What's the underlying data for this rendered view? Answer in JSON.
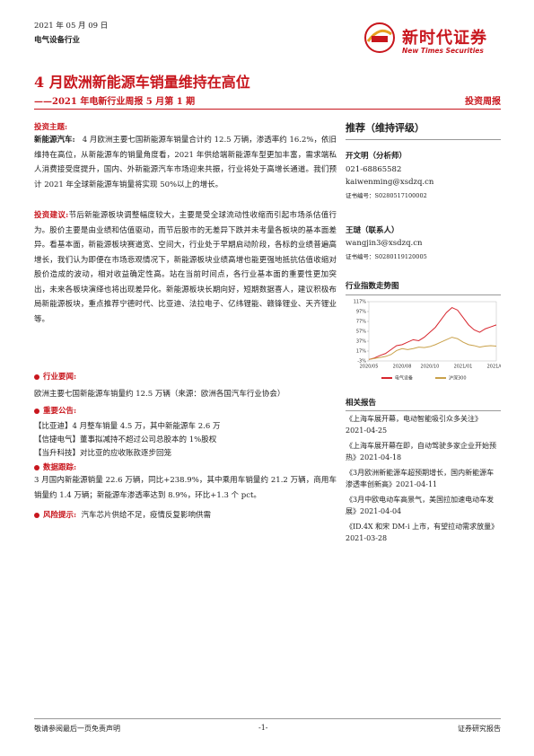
{
  "header": {
    "date": "2021 年 05 月 09 日",
    "industry": "电气设备行业",
    "company_cn": "新时代证券",
    "company_en": "New Times Securities"
  },
  "title": "4 月欧洲新能源车销量维持在高位",
  "subtitle": "——2021 年电新行业周报 5 月第 1 期",
  "report_type": "投资周报",
  "main": {
    "theme": {
      "heading": "投资主题:",
      "lead": "新能源汽车:",
      "text": "4 月欧洲主要七国新能源车销量合计约 12.5 万辆，渗透率约 16.2%，依旧维持在高位，从新能源车的销量角度看，2021 年供给端新能源车型更加丰富，需求端私人消费接受度提升，国内、外新能源汽车市场迎来共振，行业将处于高增长通道。我们预计 2021 年全球新能源车销量将实现 50%以上的增长。"
    },
    "advice": {
      "heading": "投资建议:",
      "text": "节后新能源板块调整幅度较大，主要是受全球流动性收缩而引起市场杀估值行为。股价主要是由业绩和估值驱动，而节后股市的无差异下跌并未考量各板块的基本面差异。看基本面，新能源板块赛道宽、空间大，行业处于早期启动阶段，各标的业绩普遍高增长，我们认为即便在市场悲观情况下，新能源板块业绩高增也能更强地抵抗估值收缩对股价造成的波动，相对收益确定性高。站在当前时间点，各行业基本面的重要性更加突出，未来各板块演绎也将出现差异化。新能源板块长期向好，短期数据喜人，建议积极布局新能源板块，重点推荐宁德时代、比亚迪、法拉电子、亿纬锂能、赣锋锂业、天齐锂业等。"
    },
    "news": {
      "heading": "行业要闻:",
      "text": "欧洲主要七国新能源车销量约 12.5 万辆（来源：欧洲各国汽车行业协会）"
    },
    "announcements": {
      "heading": "重要公告:",
      "items": [
        "【比亚迪】4 月整车销量 4.5 万，其中新能源车 2.6 万",
        "【信捷电气】董事拟减持不超过公司总股本的 1%股权",
        "【当升科技】对比亚的应收账款逐步回笼"
      ]
    },
    "tracking": {
      "heading": "数据跟踪:",
      "text": "3 月国内新能源销量 22.6 万辆，同比+238.9%，其中乘用车销量约 21.2 万辆，商用车销量约 1.4 万辆；新能源车渗透率达到 8.9%，环比+1.3 个 pct。"
    },
    "risk": {
      "heading": "风险提示:",
      "text": "汽车芯片供给不足，疫情反复影响供需"
    }
  },
  "sidebar": {
    "rating": "推荐（维持评级）",
    "analysts": [
      {
        "name": "开文明（分析师）",
        "phone": "021-68865582",
        "email": "kaiwenming@xsdzq.cn",
        "cert": "证书编号：S0280517100002"
      },
      {
        "name": "王琎（联系人）",
        "email": "wangjin3@xsdzq.cn",
        "cert": "证书编号：S0280119120005"
      }
    ],
    "chart_data": {
      "type": "line",
      "title": "行业指数走势图",
      "categories": [
        "2020/05",
        null,
        null,
        null,
        null,
        null,
        "2020/08",
        null,
        null,
        null,
        null,
        "2020/10",
        null,
        null,
        null,
        null,
        null,
        "2021/01",
        null,
        null,
        null,
        null,
        null,
        "2021/04"
      ],
      "series": [
        {
          "name": "电气设备",
          "color": "#d7262e",
          "values": [
            0,
            3,
            8,
            12,
            20,
            28,
            30,
            35,
            40,
            38,
            45,
            55,
            65,
            80,
            95,
            105,
            100,
            85,
            70,
            60,
            55,
            62,
            66,
            70
          ]
        },
        {
          "name": "沪深300",
          "color": "#c9a14a",
          "values": [
            0,
            2,
            4,
            6,
            10,
            18,
            22,
            20,
            22,
            25,
            24,
            26,
            30,
            35,
            40,
            45,
            42,
            35,
            30,
            28,
            25,
            27,
            28,
            27
          ]
        }
      ],
      "ylim": [
        -3,
        117
      ],
      "yticks": [
        {
          "value": 117,
          "label": "117%"
        },
        {
          "value": 97,
          "label": "97%"
        },
        {
          "value": 77,
          "label": "77%"
        },
        {
          "value": 57,
          "label": "57%"
        },
        {
          "value": 37,
          "label": "37%"
        },
        {
          "value": 17,
          "label": "17%"
        },
        {
          "value": -3,
          "label": "-3%"
        }
      ]
    },
    "related": {
      "heading": "相关报告",
      "items": [
        "《上海车展开幕，电动智能吸引众多关注》2021-04-25",
        "《上海车展开幕在即，自动驾驶多家企业开始预热》2021-04-18",
        "《3月欧洲新能源车超预期增长，国内新能源车渗透率创新高》2021-04-11",
        "《3月中欧电动车高景气，美国拉加速电动车发展》2021-04-04",
        "《ID.4X 和宋 DM-i 上市，有望拉动需求放量》2021-03-28"
      ]
    }
  },
  "footer": {
    "disclaimer": "敬请参阅最后一页免责声明",
    "page": "-1-",
    "label": "证券研究报告"
  }
}
